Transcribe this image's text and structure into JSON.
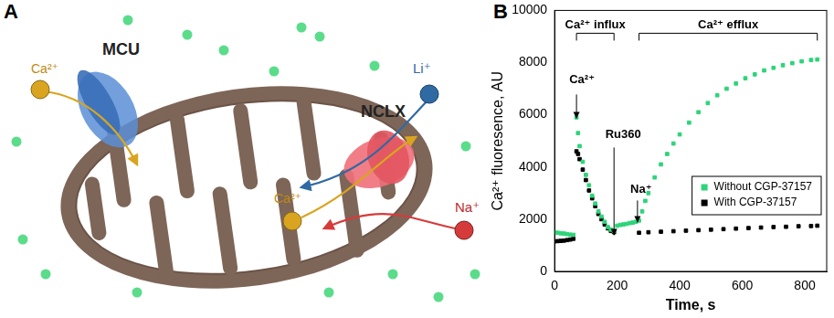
{
  "diagram": {
    "panel_label": "A",
    "labels": {
      "mcu": "MCU",
      "nclx": "NCLX",
      "ca_in": "Ca²⁺",
      "li": "Li⁺",
      "ca_out": "Ca²⁺",
      "na": "Na⁺"
    }
  },
  "chart_data": {
    "panel_label": "B",
    "type": "scatter",
    "x_label": "Time, s",
    "y_label": "Ca²⁺ fluoresence, AU",
    "xlim": [
      0,
      870
    ],
    "xticks": [
      0,
      200,
      400,
      600,
      800
    ],
    "ylim": [
      0,
      10000
    ],
    "yticks": [
      0,
      2000,
      4000,
      6000,
      8000,
      10000
    ],
    "grid": false,
    "legend": "lower right",
    "marker": "square",
    "annotations": [
      {
        "text": "Ca²⁺ influx",
        "x": [
          70,
          190
        ]
      },
      {
        "text": "Ca²⁺ efflux",
        "x": [
          270,
          840
        ]
      },
      {
        "text": "Ca²⁺",
        "x": 70
      },
      {
        "text": "Ru360",
        "x": 190
      },
      {
        "text": "Na⁺",
        "x": 265
      }
    ],
    "series": [
      {
        "name": "Without CGP-37157",
        "color": "#2ed47a",
        "x": [
          0,
          10,
          20,
          30,
          40,
          50,
          60,
          70,
          75,
          80,
          90,
          100,
          110,
          120,
          130,
          140,
          150,
          160,
          170,
          180,
          190,
          200,
          210,
          220,
          230,
          240,
          250,
          260,
          270,
          280,
          290,
          300,
          320,
          340,
          360,
          380,
          400,
          430,
          460,
          490,
          520,
          550,
          580,
          610,
          640,
          670,
          700,
          730,
          760,
          790,
          820,
          840
        ],
        "values": [
          1500,
          1480,
          1460,
          1450,
          1430,
          1410,
          1400,
          5900,
          5300,
          4800,
          4200,
          3700,
          3300,
          2900,
          2600,
          2300,
          2100,
          1900,
          1700,
          1600,
          1550,
          1750,
          1780,
          1800,
          1820,
          1850,
          1870,
          1900,
          1950,
          2300,
          2700,
          3000,
          3600,
          4100,
          4500,
          4900,
          5250,
          5700,
          6100,
          6450,
          6750,
          7000,
          7200,
          7400,
          7550,
          7700,
          7800,
          7900,
          7980,
          8050,
          8100,
          8120
        ]
      },
      {
        "name": "With CGP-37157",
        "color": "#000000",
        "x": [
          0,
          10,
          20,
          30,
          40,
          50,
          60,
          70,
          75,
          80,
          90,
          100,
          110,
          120,
          130,
          140,
          150,
          160,
          170,
          180,
          190,
          270,
          300,
          340,
          380,
          420,
          460,
          500,
          540,
          580,
          620,
          660,
          700,
          740,
          780,
          820,
          840
        ],
        "values": [
          1150,
          1160,
          1170,
          1180,
          1200,
          1220,
          1250,
          4600,
          4500,
          4300,
          3900,
          3500,
          3100,
          2800,
          2500,
          2200,
          2000,
          1800,
          1650,
          1550,
          1500,
          1480,
          1500,
          1520,
          1540,
          1560,
          1580,
          1600,
          1620,
          1640,
          1660,
          1680,
          1700,
          1710,
          1730,
          1740,
          1750
        ]
      }
    ]
  }
}
